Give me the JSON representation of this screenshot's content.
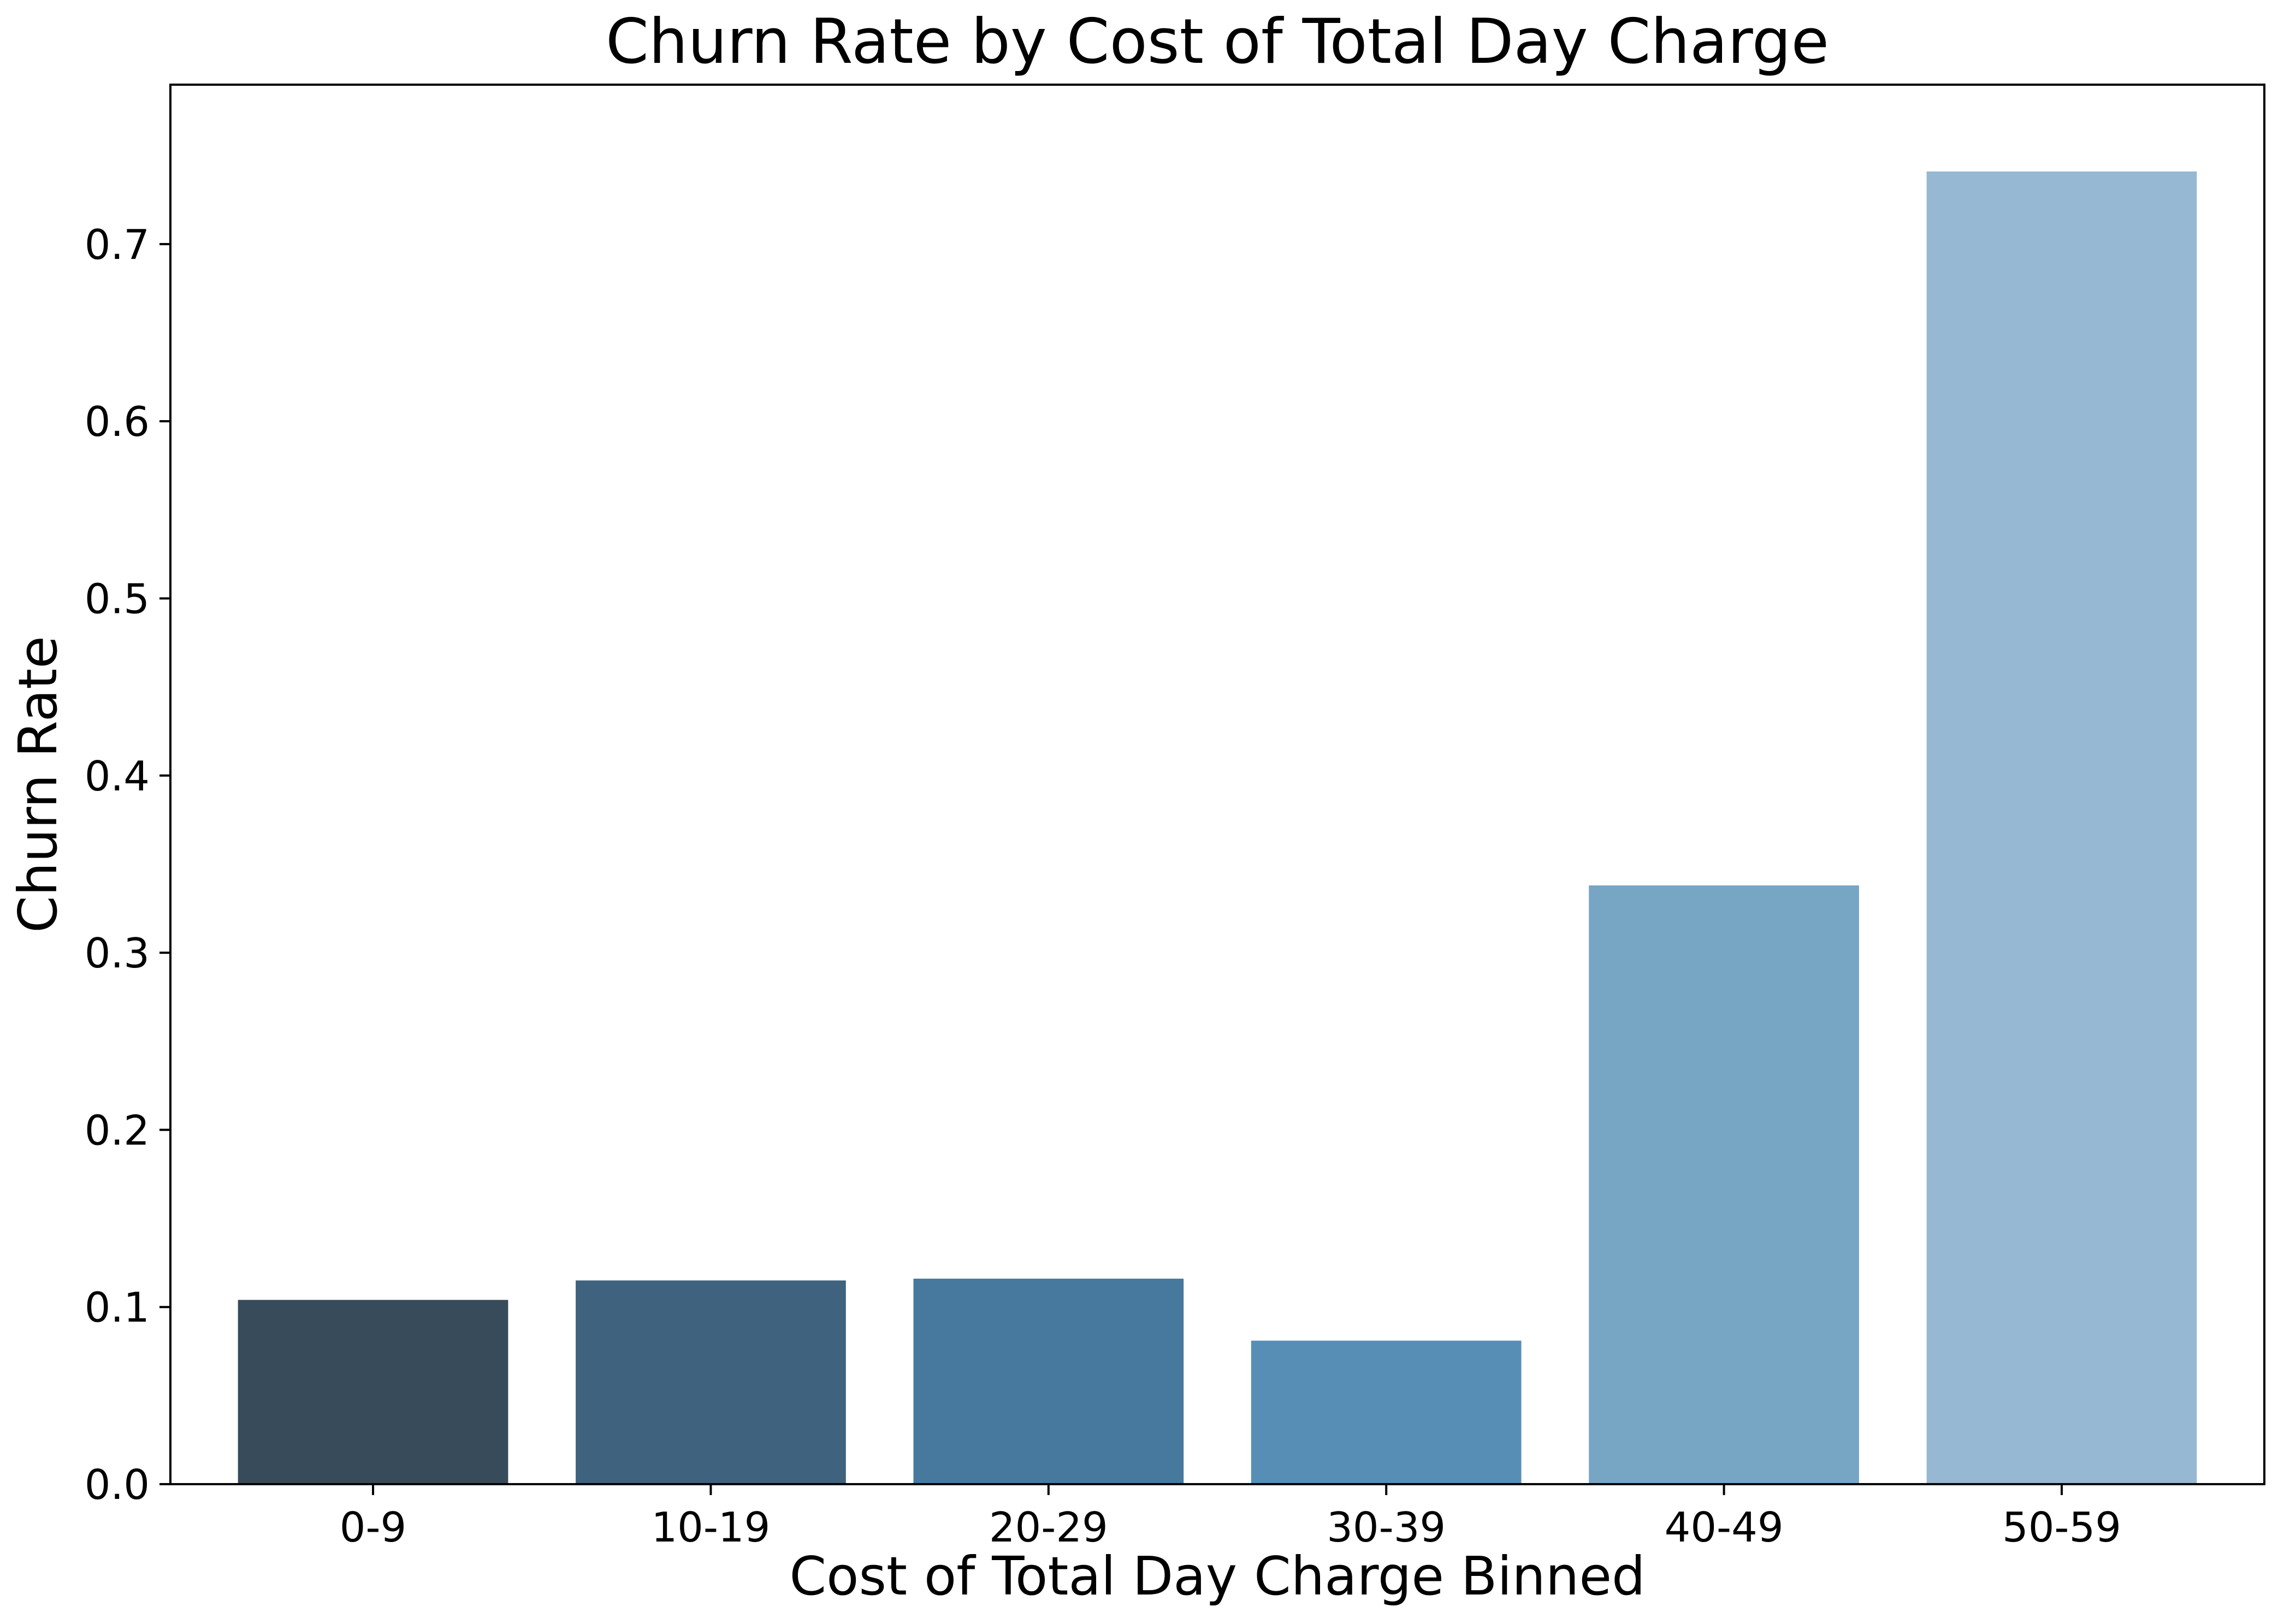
{
  "chart_data": {
    "type": "bar",
    "title": "Churn Rate by Cost of Total Day Charge",
    "xlabel": "Cost of Total Day Charge Binned",
    "ylabel": "Churn Rate",
    "categories": [
      "0-9",
      "10-19",
      "20-29",
      "30-39",
      "40-49",
      "50-59"
    ],
    "values": [
      0.104,
      0.115,
      0.116,
      0.081,
      0.338,
      0.741
    ],
    "colors": [
      "#384B5A",
      "#3F627E",
      "#46799D",
      "#568EB6",
      "#77A5C4",
      "#96B8D2"
    ],
    "ylim": [
      0,
      0.79
    ],
    "yticks": [
      0.0,
      0.1,
      0.2,
      0.3,
      0.4,
      0.5,
      0.6,
      0.7
    ],
    "ytick_labels": [
      "0.0",
      "0.1",
      "0.2",
      "0.3",
      "0.4",
      "0.5",
      "0.6",
      "0.7"
    ],
    "grid": false,
    "legend": "none"
  }
}
